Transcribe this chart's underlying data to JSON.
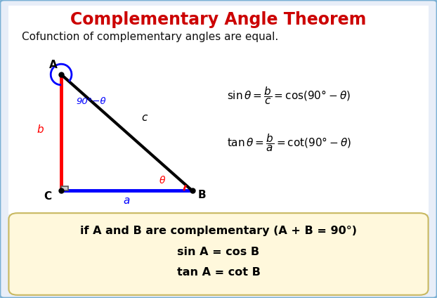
{
  "title": "Complementary Angle Theorem",
  "title_color": "#cc0000",
  "subtitle": "Cofunction of complementary angles are equal.",
  "bg_color": "#e8eef8",
  "border_color": "#7ab0d4",
  "triangle": {
    "A": [
      0.14,
      0.75
    ],
    "B": [
      0.44,
      0.36
    ],
    "C": [
      0.14,
      0.36
    ]
  },
  "label_A": "A",
  "label_B": "B",
  "label_C": "C",
  "label_a": "a",
  "label_b": "b",
  "label_c": "c",
  "angle_label": "90°−θ",
  "theta_label": "θ",
  "box_text1": "if A and B are complementary (A + B = 90°)",
  "box_text2": "sin A = cos B",
  "box_text3": "tan A = cot B",
  "box_bg": "#fff8dc",
  "box_border": "#c8b860"
}
